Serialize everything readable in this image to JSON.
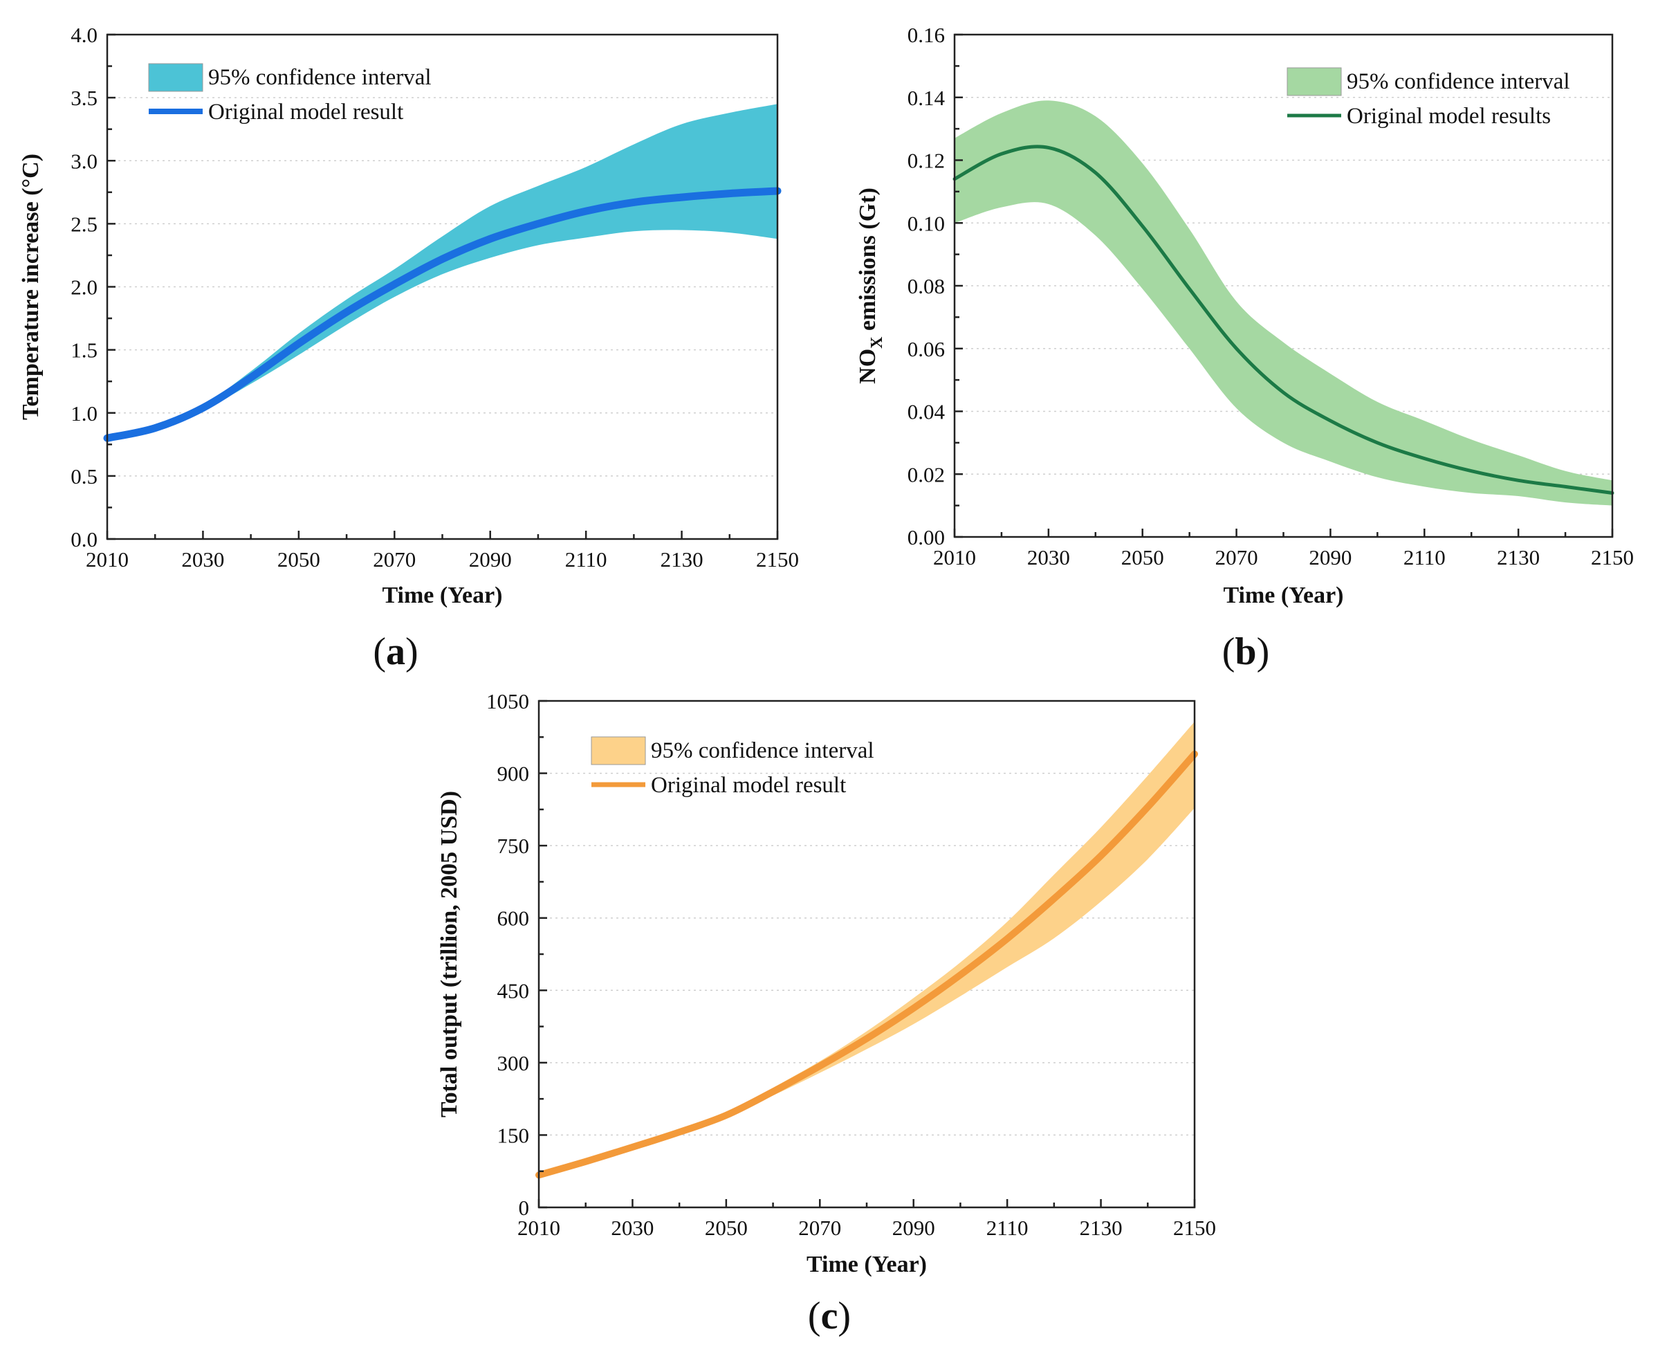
{
  "chart_data": [
    {
      "type": "line",
      "panel_label": "(a)",
      "panel_letter": "a",
      "title": "",
      "xlabel": "Time (Year)",
      "ylabel": "Temperature increase (°C)",
      "xlim": [
        2010,
        2150
      ],
      "ylim": [
        0,
        4
      ],
      "xticks": [
        "2010",
        "2030",
        "2050",
        "2070",
        "2090",
        "2110",
        "2130",
        "2150"
      ],
      "yticks": [
        "0.0",
        "0.5",
        "1.0",
        "1.5",
        "2.0",
        "2.5",
        "3.0",
        "3.5",
        "4.0"
      ],
      "grid": true,
      "legend": {
        "position": "top-left",
        "band_label": "95% confidence interval",
        "line_label": "Original model result"
      },
      "colors": {
        "band": "#4cc3d6",
        "line": "#1a6fe0"
      },
      "x": [
        2010,
        2020,
        2030,
        2040,
        2050,
        2060,
        2070,
        2080,
        2090,
        2100,
        2110,
        2120,
        2130,
        2140,
        2150
      ],
      "series": [
        {
          "name": "Original model result",
          "values": [
            0.8,
            0.88,
            1.04,
            1.28,
            1.55,
            1.8,
            2.02,
            2.22,
            2.38,
            2.5,
            2.6,
            2.67,
            2.71,
            2.74,
            2.76
          ]
        },
        {
          "name": "95% CI lower",
          "values": [
            0.79,
            0.87,
            1.02,
            1.23,
            1.46,
            1.7,
            1.92,
            2.1,
            2.23,
            2.33,
            2.39,
            2.44,
            2.45,
            2.43,
            2.38
          ]
        },
        {
          "name": "95% CI upper",
          "values": [
            0.81,
            0.89,
            1.06,
            1.33,
            1.63,
            1.9,
            2.14,
            2.4,
            2.64,
            2.8,
            2.95,
            3.13,
            3.29,
            3.38,
            3.45
          ]
        }
      ]
    },
    {
      "type": "line",
      "panel_label": "(b)",
      "panel_letter": "b",
      "title": "",
      "xlabel": "Time (Year)",
      "ylabel": "NOX emissions (Gt)",
      "ylabel_main": "NO",
      "ylabel_sub": "X",
      "ylabel_tail": " emissions (Gt)",
      "xlim": [
        2010,
        2150
      ],
      "ylim": [
        0,
        0.16
      ],
      "xticks": [
        "2010",
        "2030",
        "2050",
        "2070",
        "2090",
        "2110",
        "2130",
        "2150"
      ],
      "yticks": [
        "0.00",
        "0.02",
        "0.04",
        "0.06",
        "0.08",
        "0.10",
        "0.12",
        "0.14",
        "0.16"
      ],
      "grid": true,
      "legend": {
        "position": "top-right",
        "band_label": "95% confidence interval",
        "line_label": "Original model results"
      },
      "colors": {
        "band": "#a5d8a2",
        "line": "#1c7a46"
      },
      "x": [
        2010,
        2020,
        2030,
        2040,
        2050,
        2060,
        2070,
        2080,
        2090,
        2100,
        2110,
        2120,
        2130,
        2140,
        2150
      ],
      "series": [
        {
          "name": "Original model results",
          "values": [
            0.114,
            0.122,
            0.124,
            0.116,
            0.099,
            0.079,
            0.06,
            0.046,
            0.037,
            0.03,
            0.025,
            0.021,
            0.018,
            0.016,
            0.014
          ]
        },
        {
          "name": "95% CI lower",
          "values": [
            0.1,
            0.105,
            0.106,
            0.096,
            0.079,
            0.06,
            0.041,
            0.03,
            0.024,
            0.019,
            0.016,
            0.014,
            0.013,
            0.011,
            0.01
          ]
        },
        {
          "name": "95% CI upper",
          "values": [
            0.127,
            0.135,
            0.139,
            0.134,
            0.119,
            0.098,
            0.075,
            0.062,
            0.052,
            0.043,
            0.037,
            0.031,
            0.026,
            0.021,
            0.018
          ]
        }
      ]
    },
    {
      "type": "line",
      "panel_label": "(c)",
      "panel_letter": "c",
      "title": "",
      "xlabel": "Time (Year)",
      "ylabel": "Total output (trillion, 2005 USD)",
      "xlim": [
        2010,
        2150
      ],
      "ylim": [
        0,
        1050
      ],
      "xticks": [
        "2010",
        "2030",
        "2050",
        "2070",
        "2090",
        "2110",
        "2130",
        "2150"
      ],
      "yticks": [
        "0",
        "150",
        "300",
        "450",
        "600",
        "750",
        "900",
        "1050"
      ],
      "grid": true,
      "legend": {
        "position": "top-left",
        "band_label": "95% confidence interval",
        "line_label": "Original model result"
      },
      "colors": {
        "band": "#fdd28a",
        "line": "#f39a3a"
      },
      "x": [
        2010,
        2020,
        2030,
        2040,
        2050,
        2060,
        2070,
        2080,
        2090,
        2100,
        2110,
        2120,
        2130,
        2140,
        2150
      ],
      "series": [
        {
          "name": "Original model result",
          "values": [
            67,
            95,
            125,
            156,
            191,
            240,
            293,
            350,
            413,
            482,
            557,
            640,
            729,
            830,
            940
          ]
        },
        {
          "name": "95% CI lower",
          "values": [
            66,
            94,
            124,
            155,
            189,
            232,
            279,
            328,
            380,
            438,
            498,
            558,
            634,
            722,
            828
          ]
        },
        {
          "name": "95% CI upper",
          "values": [
            68,
            96,
            126,
            157,
            194,
            248,
            303,
            365,
            434,
            508,
            592,
            690,
            788,
            895,
            1007
          ]
        }
      ]
    }
  ]
}
